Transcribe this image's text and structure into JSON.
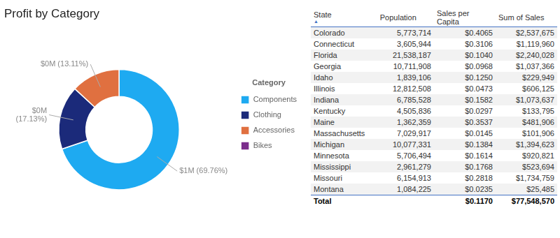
{
  "chart_data": {
    "type": "doughnut",
    "title": "Profit by Category",
    "categories": [
      "Components",
      "Clothing",
      "Accessories",
      "Bikes"
    ],
    "values": [
      69.76,
      17.13,
      13.11,
      0.0
    ],
    "colors": [
      "#1EAAF1",
      "#1B2A7A",
      "#E07040",
      "#7B2D8B"
    ],
    "legend": "right",
    "legend_title": "Category",
    "annotations": [
      {
        "category": "Components",
        "text": "$1M (69.76%)"
      },
      {
        "category": "Clothing",
        "text": "$0M\n(17.13%)"
      },
      {
        "category": "Accessories",
        "text": "$0M (13.11%)"
      }
    ]
  },
  "table": {
    "columns": [
      "State",
      "Population",
      "Sales per Capita",
      "Sum of Sales"
    ],
    "sort_arrow": "▲",
    "rows": [
      [
        "Colorado",
        "5,773,714",
        "$0.4065",
        "$2,537,675"
      ],
      [
        "Connecticut",
        "3,605,944",
        "$0.3106",
        "$1,119,960"
      ],
      [
        "Florida",
        "21,538,187",
        "$0.1040",
        "$2,240,028"
      ],
      [
        "Georgia",
        "10,711,908",
        "$0.0968",
        "$1,037,366"
      ],
      [
        "Idaho",
        "1,839,106",
        "$0.1250",
        "$229,949"
      ],
      [
        "Illinois",
        "12,812,508",
        "$0.0473",
        "$606,125"
      ],
      [
        "Indiana",
        "6,785,528",
        "$0.1582",
        "$1,073,637"
      ],
      [
        "Kentucky",
        "4,505,836",
        "$0.0297",
        "$133,795"
      ],
      [
        "Maine",
        "1,362,359",
        "$0.3537",
        "$481,906"
      ],
      [
        "Massachusetts",
        "7,029,917",
        "$0.0145",
        "$101,906"
      ],
      [
        "Michigan",
        "10,077,331",
        "$0.1384",
        "$1,394,623"
      ],
      [
        "Minnesota",
        "5,706,494",
        "$0.1614",
        "$920,821"
      ],
      [
        "Mississippi",
        "2,961,279",
        "$0.1768",
        "$523,694"
      ],
      [
        "Missouri",
        "6,154,913",
        "$0.2818",
        "$1,734,759"
      ],
      [
        "Montana",
        "1,084,225",
        "$0.0235",
        "$25,485"
      ]
    ],
    "total_row": [
      "Total",
      null,
      "$0.1170",
      "$77,548,570"
    ]
  }
}
